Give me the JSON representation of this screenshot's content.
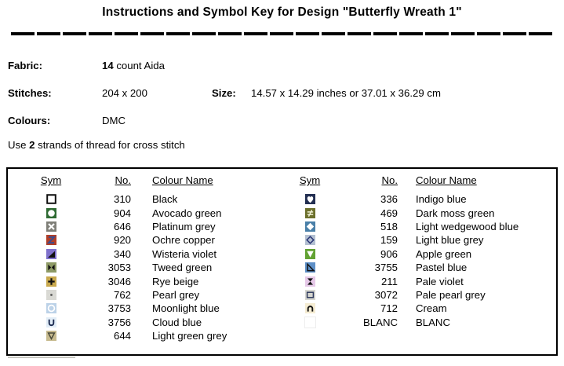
{
  "title": "Instructions and Symbol Key for Design \"Butterfly Wreath 1\"",
  "info": {
    "fabric_label": "Fabric:",
    "fabric_value_bold": "14",
    "fabric_value_rest": " count Aida",
    "stitches_label": "Stitches:",
    "stitches_value": "204 x 200",
    "size_label": "Size:",
    "size_value": "14.57 x 14.29 inches or 37.01 x 36.29 cm",
    "colours_label": "Colours:",
    "colours_value": "DMC",
    "strands_prefix": "Use ",
    "strands_bold": "2",
    "strands_suffix": " strands of thread for cross stitch"
  },
  "key_table": {
    "headers": {
      "sym": "Sym",
      "no": "No.",
      "name": "Colour Name"
    },
    "left_rows": [
      {
        "no": "310",
        "name": "Black",
        "sym": {
          "glyph": "square-outline",
          "bg": "#ffffff",
          "fg": "#111111"
        }
      },
      {
        "no": "904",
        "name": "Avocado green",
        "sym": {
          "glyph": "circle-filled",
          "bg": "#2f6b33",
          "fg": "#ffffff"
        }
      },
      {
        "no": "646",
        "name": "Platinum grey",
        "sym": {
          "glyph": "x",
          "bg": "#7f7f78",
          "fg": "#ffffff"
        }
      },
      {
        "no": "920",
        "name": "Ochre copper",
        "sym": {
          "glyph": "z",
          "bg": "#b23f28",
          "fg": "#3d4d8f"
        }
      },
      {
        "no": "340",
        "name": "Wisteria violet",
        "sym": {
          "glyph": "triangle-lr-filled",
          "bg": "#7f71cc",
          "fg": "#111111"
        }
      },
      {
        "no": "3053",
        "name": "Tweed green",
        "sym": {
          "glyph": "bowtie",
          "bg": "#8e9a66",
          "fg": "#111111"
        }
      },
      {
        "no": "3046",
        "name": "Rye beige",
        "sym": {
          "glyph": "plus",
          "bg": "#c9a94e",
          "fg": "#111111"
        }
      },
      {
        "no": "762",
        "name": "Pearl grey",
        "sym": {
          "glyph": "dot",
          "bg": "#d9d9d4",
          "fg": "#555555"
        }
      },
      {
        "no": "3753",
        "name": "Moonlight blue",
        "sym": {
          "glyph": "circle-outline",
          "bg": "#bcd2e8",
          "fg": "#ffffff"
        }
      },
      {
        "no": "3756",
        "name": "Cloud blue",
        "sym": {
          "glyph": "u",
          "bg": "#e2edf7",
          "fg": "#1b2a50"
        }
      },
      {
        "no": "644",
        "name": "Light green grey",
        "sym": {
          "glyph": "nabla",
          "bg": "#c7bb8f",
          "fg": "#4a4a3a"
        }
      }
    ],
    "right_rows": [
      {
        "no": "336",
        "name": "Indigo blue",
        "sym": {
          "glyph": "heart",
          "bg": "#232f52",
          "fg": "#ffffff"
        }
      },
      {
        "no": "469",
        "name": "Dark moss green",
        "sym": {
          "glyph": "neq",
          "bg": "#6c702c",
          "fg": "#f0f0d4"
        }
      },
      {
        "no": "518",
        "name": "Light wedgewood blue",
        "sym": {
          "glyph": "diamond-filled",
          "bg": "#4a80a8",
          "fg": "#ffffff"
        }
      },
      {
        "no": "159",
        "name": "Light blue grey",
        "sym": {
          "glyph": "diamond-outline",
          "bg": "#b3c0d1",
          "fg": "#2a3575"
        }
      },
      {
        "no": "906",
        "name": "Apple green",
        "sym": {
          "glyph": "triangle-down-filled",
          "bg": "#62a233",
          "fg": "#ffffff"
        }
      },
      {
        "no": "3755",
        "name": "Pastel blue",
        "sym": {
          "glyph": "triangle-ll-outline",
          "bg": "#5e90c8",
          "fg": "#111111"
        }
      },
      {
        "no": "211",
        "name": "Pale violet",
        "sym": {
          "glyph": "hourglass",
          "bg": "#e6c9e8",
          "fg": "#111111"
        }
      },
      {
        "no": "3072",
        "name": "Pale pearl grey",
        "sym": {
          "glyph": "rect-outline",
          "bg": "#d6d6d0",
          "fg": "#2f3a5e"
        }
      },
      {
        "no": "712",
        "name": "Cream",
        "sym": {
          "glyph": "cap",
          "bg": "#f5ecd2",
          "fg": "#111111"
        }
      },
      {
        "no": "BLANC",
        "name": "BLANC",
        "sym": {
          "glyph": "blank",
          "bg": "#ffffff",
          "fg": "#ffffff"
        }
      }
    ]
  }
}
